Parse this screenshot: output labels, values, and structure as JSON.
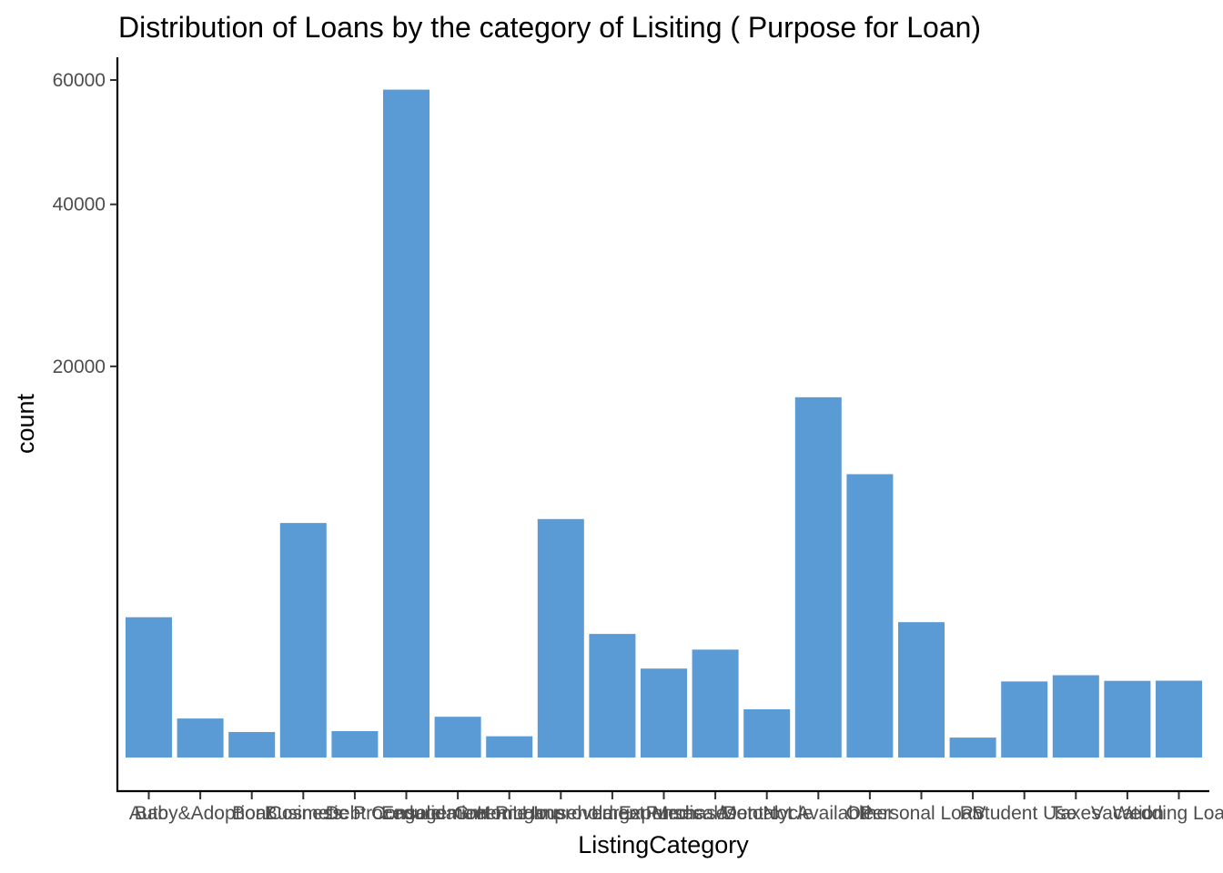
{
  "chart_data": {
    "type": "bar",
    "title": "Distribution of Loans by the category of Lisiting ( Purpose for Loan)",
    "xlabel": "ListingCategory",
    "ylabel": "count",
    "bar_color": "#5B9BD5",
    "grid": false,
    "legend": "none",
    "ylim": [
      0,
      62000
    ],
    "yticks": [
      20000,
      40000,
      60000
    ],
    "y_scale": "sqrt",
    "categories": [
      "Auto",
      "Baby&Adoption",
      "Boat",
      "Business",
      "Cosmetic Procedure",
      "Debt Consolidation",
      "Engagement Ring",
      "Green Loans",
      "Home Improvement",
      "Household Expenses",
      "Large Purchases",
      "Medical/Dental",
      "Motorcycle",
      "Not Available",
      "Other",
      "Personal Loan",
      "RV",
      "Student Use",
      "Taxes",
      "Vacation",
      "Wedding Loans"
    ],
    "values": [
      2572,
      199,
      85,
      7189,
      91,
      58308,
      217,
      59,
      7433,
      1996,
      1034,
      1522,
      304,
      16965,
      10494,
      2395,
      52,
      756,
      885,
      768,
      771
    ]
  }
}
